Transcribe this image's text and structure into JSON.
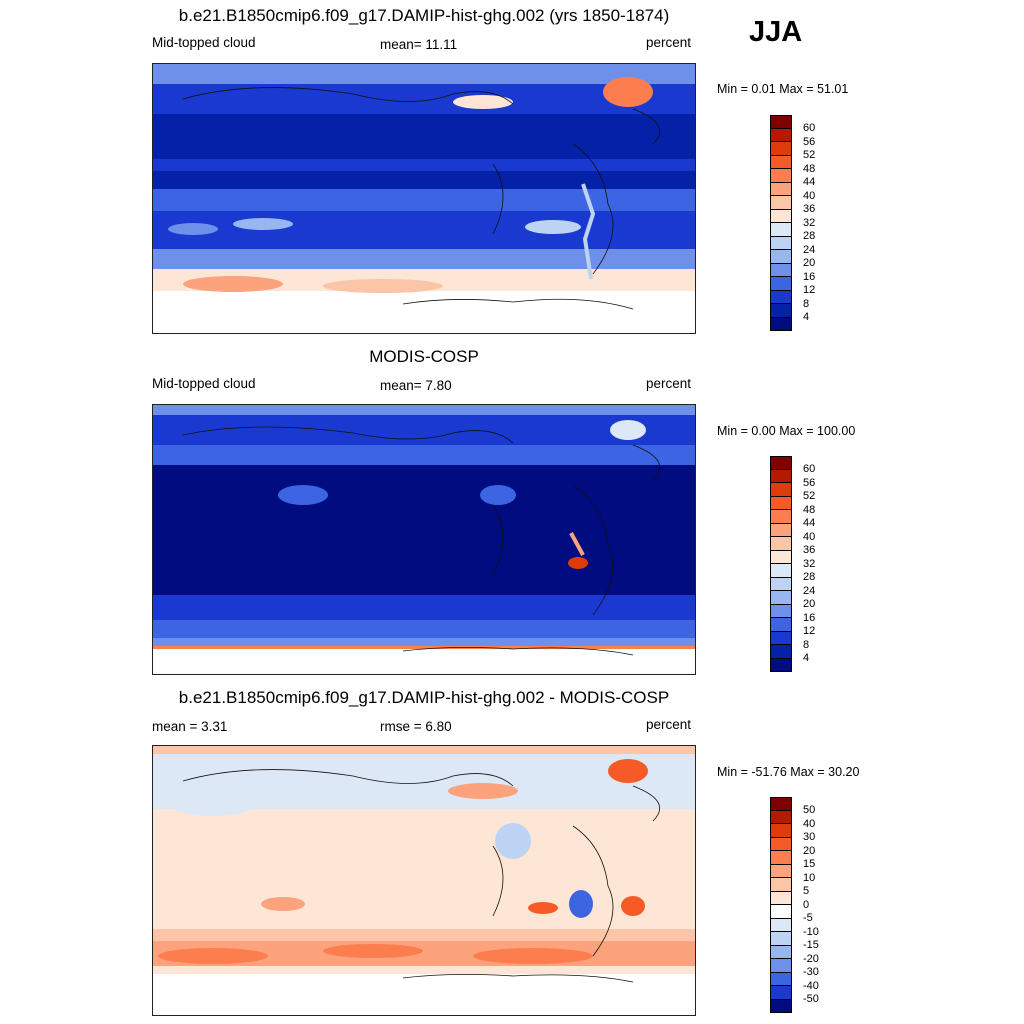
{
  "season": "JJA",
  "panels": [
    {
      "title": "b.e21.B1850cmip6.f09_g17.DAMIP-hist-ghg.002 (yrs 1850-1874)",
      "left_label": "Mid-topped cloud",
      "center_label": "mean=  11.11",
      "right_label": "percent",
      "minmax": "Min =   0.01 Max =  51.01",
      "colorbar_labels": [
        "60",
        "56",
        "52",
        "48",
        "44",
        "40",
        "36",
        "32",
        "28",
        "24",
        "20",
        "16",
        "12",
        "8",
        "4"
      ]
    },
    {
      "title": "MODIS-COSP",
      "left_label": "Mid-topped cloud",
      "center_label": "mean=   7.80",
      "right_label": "percent",
      "minmax": "Min =   0.00 Max = 100.00",
      "colorbar_labels": [
        "60",
        "56",
        "52",
        "48",
        "44",
        "40",
        "36",
        "32",
        "28",
        "24",
        "20",
        "16",
        "12",
        "8",
        "4"
      ]
    },
    {
      "title": "b.e21.B1850cmip6.f09_g17.DAMIP-hist-ghg.002 - MODIS-COSP",
      "left_label": "mean =   3.31",
      "center_label": "rmse =   6.80",
      "right_label": "percent",
      "minmax": "Min = -51.76 Max =  30.20",
      "colorbar_labels": [
        "50",
        "40",
        "30",
        "20",
        "15",
        "10",
        "5",
        "0",
        "-5",
        "-10",
        "-15",
        "-20",
        "-30",
        "-40",
        "-50"
      ]
    }
  ],
  "colors": {
    "abs_scale": [
      "#800000",
      "#b51a00",
      "#e03b0b",
      "#f65a26",
      "#fc7e4f",
      "#fca27d",
      "#fdc5a7",
      "#fde6d6",
      "#dde8f7",
      "#bcd3f3",
      "#98b6ef",
      "#6e8fea",
      "#3d64e2",
      "#1939d0",
      "#0421a8",
      "#000c80"
    ],
    "diff_scale": [
      "#800000",
      "#b51a00",
      "#e03b0b",
      "#f65a26",
      "#fc7e4f",
      "#fca27d",
      "#fdc5a7",
      "#fde6d6",
      "#ffffff",
      "#dde8f7",
      "#bcd3f3",
      "#98b6ef",
      "#6e8fea",
      "#3d64e2",
      "#1939d0",
      "#000c80"
    ]
  }
}
